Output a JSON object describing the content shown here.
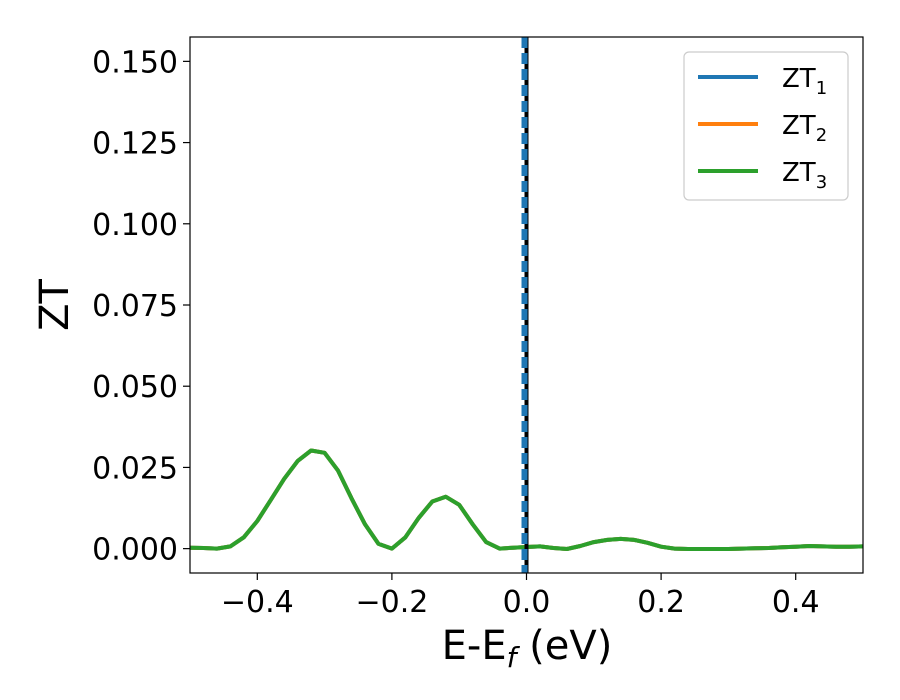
{
  "chart_data": {
    "type": "line",
    "xlabel_main": "E-E",
    "xlabel_sub": "f",
    "xlabel_unit": " (eV)",
    "ylabel": "ZT",
    "xlim": [
      -0.5,
      0.5
    ],
    "ylim": [
      -0.0075,
      0.1575
    ],
    "xticks": [
      -0.4,
      -0.2,
      0.0,
      0.2,
      0.4
    ],
    "xtick_labels": [
      "−0.4",
      "−0.2",
      "0.0",
      "0.2",
      "0.4"
    ],
    "yticks": [
      0.0,
      0.025,
      0.05,
      0.075,
      0.1,
      0.125,
      0.15
    ],
    "ytick_labels": [
      "0.000",
      "0.025",
      "0.050",
      "0.075",
      "0.100",
      "0.125",
      "0.150"
    ],
    "grid": false,
    "legend_position": "top-right",
    "fermi_line_x": 0.0,
    "x": [
      -0.5,
      -0.48,
      -0.46,
      -0.44,
      -0.42,
      -0.4,
      -0.38,
      -0.36,
      -0.34,
      -0.32,
      -0.3,
      -0.28,
      -0.26,
      -0.24,
      -0.22,
      -0.2,
      -0.18,
      -0.16,
      -0.14,
      -0.12,
      -0.1,
      -0.08,
      -0.06,
      -0.04,
      -0.02,
      0.0,
      0.02,
      0.04,
      0.06,
      0.08,
      0.1,
      0.12,
      0.14,
      0.16,
      0.18,
      0.2,
      0.22,
      0.24,
      0.26,
      0.28,
      0.3,
      0.32,
      0.34,
      0.36,
      0.38,
      0.4,
      0.42,
      0.44,
      0.46,
      0.48,
      0.5
    ],
    "series": [
      {
        "name": "ZT",
        "sub": "1",
        "color": "#1f77b4",
        "values": [
          0.0003,
          0.0002,
          0.0,
          0.0007,
          0.0035,
          0.0085,
          0.015,
          0.0215,
          0.027,
          0.0302,
          0.0295,
          0.024,
          0.0155,
          0.0075,
          0.0015,
          0.0,
          0.0035,
          0.0095,
          0.0145,
          0.016,
          0.0135,
          0.0075,
          0.002,
          0.0,
          0.0003,
          0.0005,
          0.0007,
          0.0002,
          -0.0001,
          0.0008,
          0.002,
          0.0027,
          0.003,
          0.0027,
          0.0018,
          0.0006,
          0.0,
          -0.0001,
          -0.0001,
          -0.0001,
          -0.0001,
          0.0,
          0.0001,
          0.0002,
          0.0004,
          0.0006,
          0.0008,
          0.0007,
          0.0006,
          0.0006,
          0.0007
        ]
      },
      {
        "name": "ZT",
        "sub": "2",
        "color": "#ff7f0e",
        "values": [
          0.0003,
          0.0002,
          0.0,
          0.0007,
          0.0035,
          0.0085,
          0.015,
          0.0215,
          0.027,
          0.0302,
          0.0295,
          0.024,
          0.0155,
          0.0075,
          0.0015,
          0.0,
          0.0035,
          0.0095,
          0.0145,
          0.016,
          0.0135,
          0.0075,
          0.002,
          0.0,
          0.0003,
          0.0005,
          0.0007,
          0.0002,
          -0.0001,
          0.0008,
          0.002,
          0.0027,
          0.003,
          0.0027,
          0.0018,
          0.0006,
          0.0,
          -0.0001,
          -0.0001,
          -0.0001,
          -0.0001,
          0.0,
          0.0001,
          0.0002,
          0.0004,
          0.0006,
          0.0008,
          0.0007,
          0.0006,
          0.0006,
          0.0007
        ]
      },
      {
        "name": "ZT",
        "sub": "3",
        "color": "#2ca02c",
        "values": [
          0.0003,
          0.0002,
          0.0,
          0.0007,
          0.0035,
          0.0085,
          0.015,
          0.0215,
          0.027,
          0.0302,
          0.0295,
          0.024,
          0.0155,
          0.0075,
          0.0015,
          0.0,
          0.0035,
          0.0095,
          0.0145,
          0.016,
          0.0135,
          0.0075,
          0.002,
          0.0,
          0.0003,
          0.0005,
          0.0007,
          0.0002,
          -0.0001,
          0.0008,
          0.002,
          0.0027,
          0.003,
          0.0027,
          0.0018,
          0.0006,
          0.0,
          -0.0001,
          -0.0001,
          -0.0001,
          -0.0001,
          0.0,
          0.0001,
          0.0002,
          0.0004,
          0.0006,
          0.0008,
          0.0007,
          0.0006,
          0.0006,
          0.0007
        ]
      }
    ]
  }
}
